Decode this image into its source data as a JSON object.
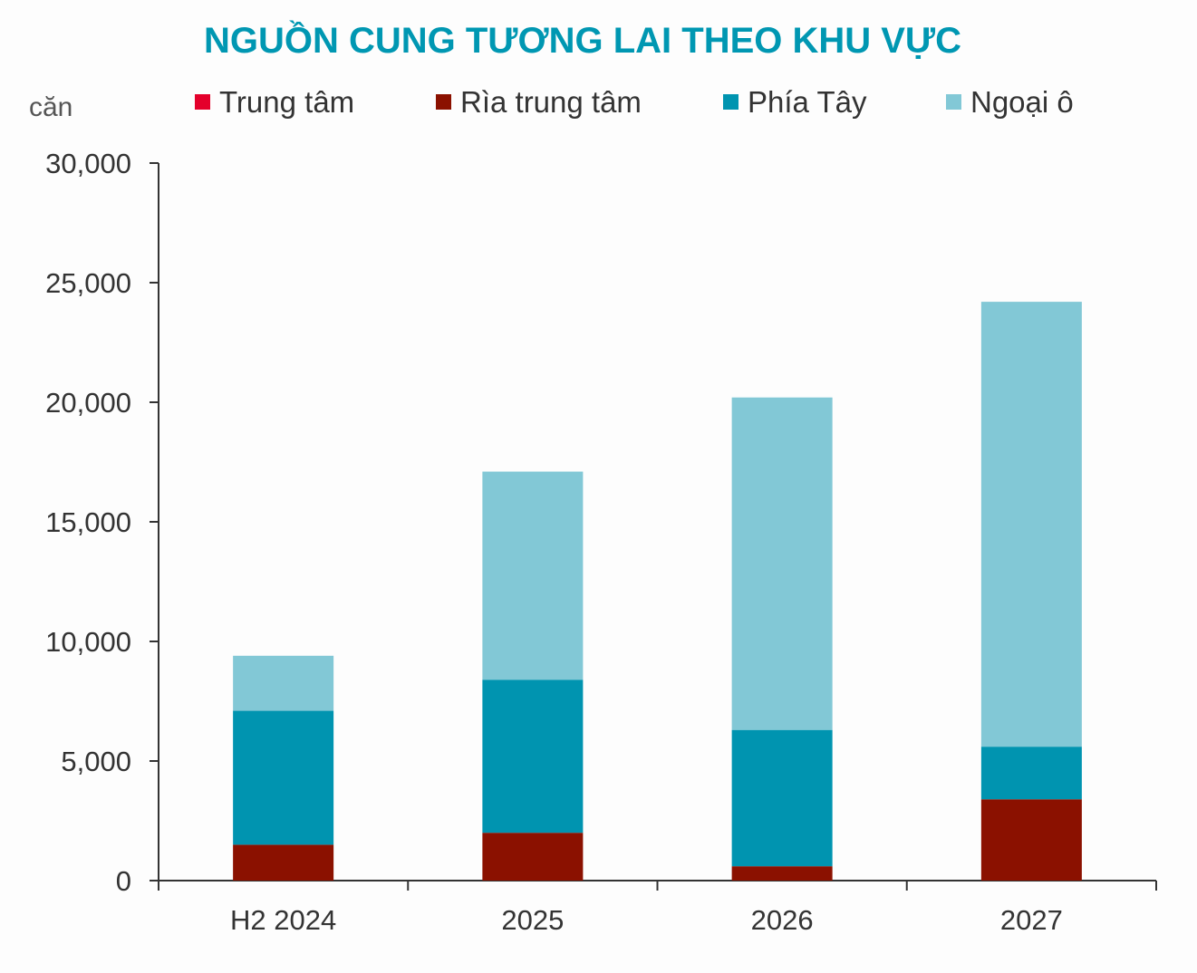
{
  "chart_data": {
    "type": "bar",
    "stacked": true,
    "title": "NGUỒN CUNG TƯƠNG LAI THEO KHU VỰC",
    "ylabel": "căn",
    "xlabel": "",
    "ylim": [
      0,
      30000
    ],
    "yticks": [
      0,
      5000,
      10000,
      15000,
      20000,
      25000,
      30000
    ],
    "ytick_labels": [
      "0",
      "5,000",
      "10,000",
      "15,000",
      "20,000",
      "25,000",
      "30,000"
    ],
    "grid": false,
    "legend_position": "top",
    "categories": [
      "H2 2024",
      "2025",
      "2026",
      "2027"
    ],
    "series": [
      {
        "name": "Trung tâm",
        "color": "#e4002b",
        "values": [
          0,
          0,
          0,
          0
        ]
      },
      {
        "name": "Rìa trung tâm",
        "color": "#8b1100",
        "values": [
          1500,
          2000,
          600,
          3400
        ]
      },
      {
        "name": "Phía Tây",
        "color": "#0094b0",
        "values": [
          5600,
          6400,
          5700,
          2200
        ]
      },
      {
        "name": "Ngoại ô",
        "color": "#82c8d6",
        "values": [
          2300,
          8700,
          13900,
          18600
        ]
      }
    ],
    "title_color": "#0097b2"
  }
}
